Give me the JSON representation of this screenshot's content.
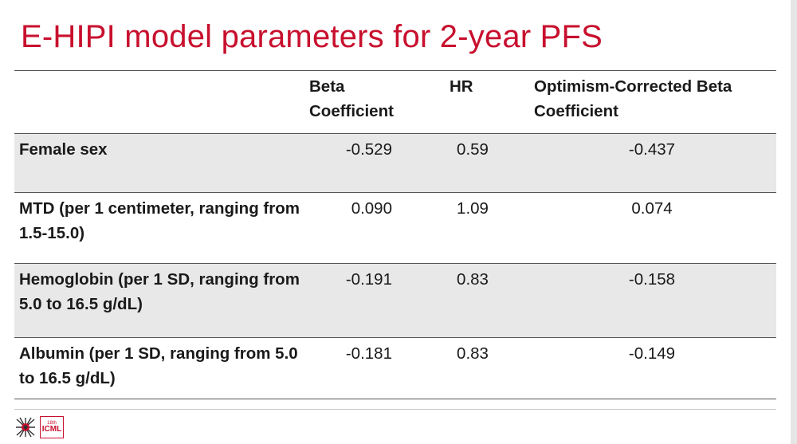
{
  "slide": {
    "title": "E-HIPI model parameters for 2-year PFS"
  },
  "table": {
    "headers": {
      "variable": "",
      "beta": "Beta Coefficient",
      "hr": "HR",
      "optimism": "Optimism-Corrected Beta Coefficient"
    },
    "rows": [
      {
        "variable": "Female sex",
        "beta": "-0.529",
        "hr": "0.59",
        "optimism": "-0.437"
      },
      {
        "variable": "MTD (per 1 centimeter, ranging from 1.5-15.0)",
        "beta": "0.090",
        "hr": "1.09",
        "optimism": "0.074"
      },
      {
        "variable": "Hemoglobin (per 1 SD, ranging from 5.0 to 16.5 g/dL)",
        "beta": "-0.191",
        "hr": "0.83",
        "optimism": "-0.158"
      },
      {
        "variable": "Albumin (per 1 SD, ranging from 5.0 to 16.5 g/dL)",
        "beta": "-0.181",
        "hr": "0.83",
        "optimism": "-0.149"
      }
    ]
  },
  "footer": {
    "logo_small": "18th",
    "logo_main": "ICML"
  },
  "colors": {
    "title": "#c8102e",
    "row_shade": "#e8e8e8",
    "rule": "#555555"
  }
}
